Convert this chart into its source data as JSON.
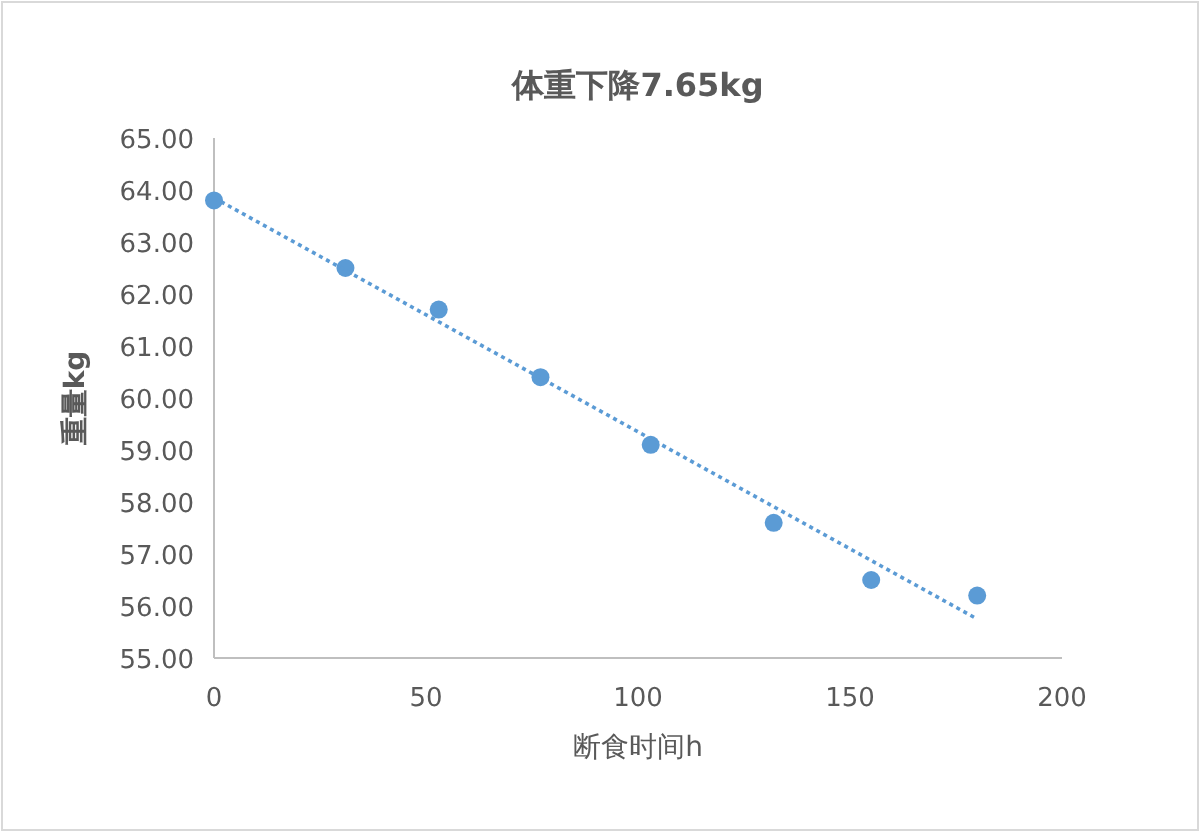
{
  "chart_data": {
    "type": "scatter",
    "title": "体重下降7.65kg",
    "xlabel": "断食时间h",
    "ylabel": "重量kg",
    "grid": false,
    "xlim": [
      0,
      200
    ],
    "xticks": [
      0,
      50,
      100,
      150,
      200
    ],
    "ylim": [
      55,
      65
    ],
    "yticks": [
      {
        "value": 55,
        "label": "55.00"
      },
      {
        "value": 56,
        "label": "56.00"
      },
      {
        "value": 57,
        "label": "57.00"
      },
      {
        "value": 58,
        "label": "58.00"
      },
      {
        "value": 59,
        "label": "59.00"
      },
      {
        "value": 60,
        "label": "60.00"
      },
      {
        "value": 61,
        "label": "61.00"
      },
      {
        "value": 62,
        "label": "62.00"
      },
      {
        "value": 63,
        "label": "63.00"
      },
      {
        "value": 64,
        "label": "64.00"
      },
      {
        "value": 65,
        "label": "65.00"
      }
    ],
    "series": [
      {
        "marker": "circle",
        "color": "#5b9bd5",
        "x": [
          0,
          31,
          53,
          77,
          103,
          132,
          155,
          180
        ],
        "values": [
          63.8,
          62.5,
          61.7,
          60.4,
          59.1,
          57.6,
          56.5,
          56.2
        ]
      },
      {
        "type": "line",
        "color": "#5b9bd5",
        "line_style": "dotted",
        "marker": "none",
        "x": [
          0,
          180
        ],
        "values": [
          63.85,
          55.75
        ]
      }
    ]
  }
}
